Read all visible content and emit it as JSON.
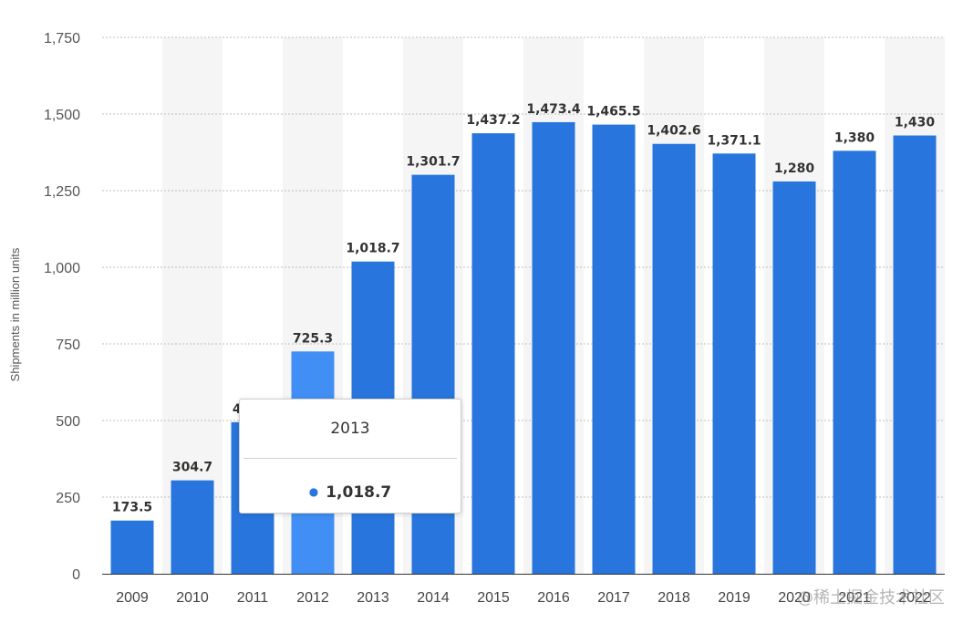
{
  "chart_data": {
    "type": "bar",
    "ylabel": "Shipments in million units",
    "ylim": [
      0,
      1750
    ],
    "yticks": [
      0,
      250,
      500,
      750,
      1000,
      1250,
      1500,
      1750
    ],
    "ytick_labels": [
      "0",
      "250",
      "500",
      "750",
      "1,000",
      "1,250",
      "1,500",
      "1,750"
    ],
    "categories": [
      "2009",
      "2010",
      "2011",
      "2012",
      "2013",
      "2014",
      "2015",
      "2016",
      "2017",
      "2018",
      "2019",
      "2020",
      "2021",
      "2022"
    ],
    "values": [
      173.5,
      304.7,
      494.5,
      725.3,
      1018.7,
      1301.7,
      1437.2,
      1473.4,
      1465.5,
      1402.6,
      1371.1,
      1280,
      1380,
      1430
    ],
    "value_labels": [
      "173.5",
      "304.7",
      "494.5",
      "725.3",
      "1,018.7",
      "1,301.7",
      "1,437.2",
      "1,473.4",
      "1,465.5",
      "1,402.6",
      "1,371.1",
      "1,280",
      "1,380",
      "1,430"
    ],
    "grid": true,
    "bar_color": "#2876dd",
    "highlight_color": "#418ef4",
    "highlight_index": 3,
    "band_color": "#f5f5f6"
  },
  "tooltip": {
    "title": "2013",
    "value": "1,018.7"
  },
  "watermark": "@稀土掘金技术社区"
}
